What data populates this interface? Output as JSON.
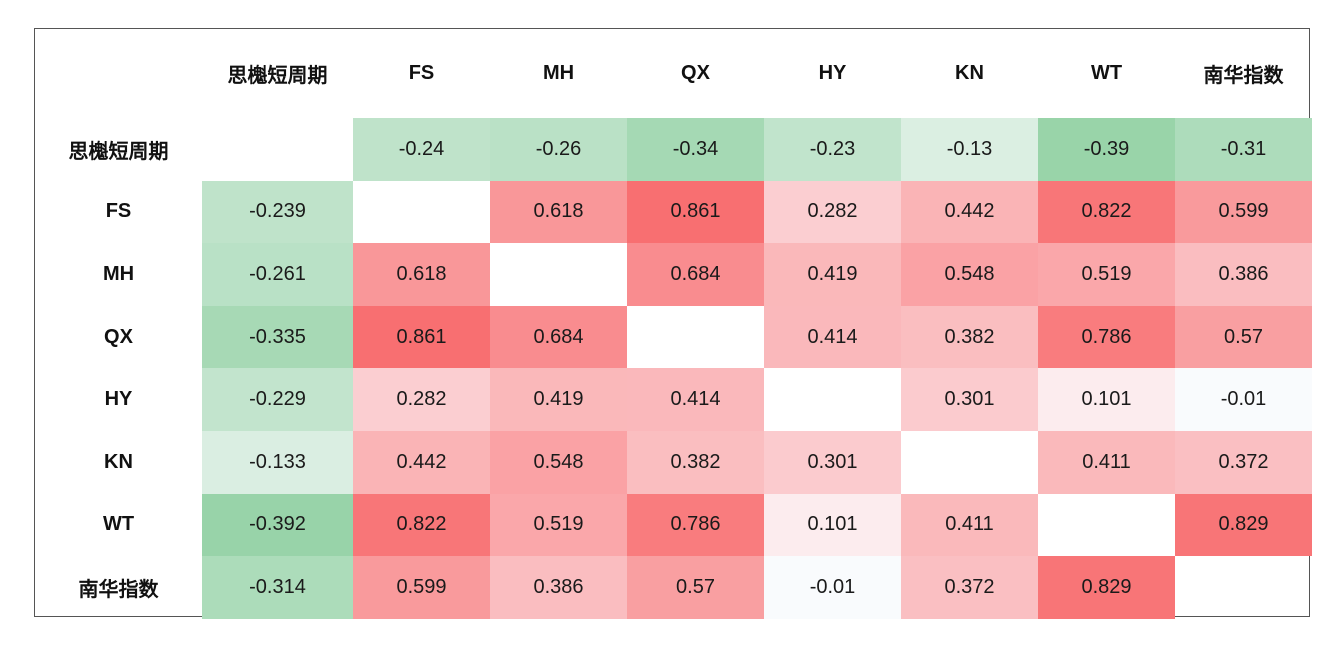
{
  "chart_data": {
    "type": "heatmap",
    "column_labels": [
      "思櫆短周期",
      "FS",
      "MH",
      "QX",
      "HY",
      "KN",
      "WT",
      "南华指数"
    ],
    "row_labels": [
      "思櫆短周期",
      "FS",
      "MH",
      "QX",
      "HY",
      "KN",
      "WT",
      "南华指数"
    ],
    "cells": [
      [
        "",
        "-0.24",
        "-0.26",
        "-0.34",
        "-0.23",
        "-0.13",
        "-0.39",
        "-0.31"
      ],
      [
        "-0.239",
        "",
        "0.618",
        "0.861",
        "0.282",
        "0.442",
        "0.822",
        "0.599"
      ],
      [
        "-0.261",
        "0.618",
        "",
        "0.684",
        "0.419",
        "0.548",
        "0.519",
        "0.386"
      ],
      [
        "-0.335",
        "0.861",
        "0.684",
        "",
        "0.414",
        "0.382",
        "0.786",
        "0.57"
      ],
      [
        "-0.229",
        "0.282",
        "0.419",
        "0.414",
        "",
        "0.301",
        "0.101",
        "-0.01"
      ],
      [
        "-0.133",
        "0.442",
        "0.548",
        "0.382",
        "0.301",
        "",
        "0.411",
        "0.372"
      ],
      [
        "-0.392",
        "0.822",
        "0.519",
        "0.786",
        "0.101",
        "0.411",
        "",
        "0.829"
      ],
      [
        "-0.314",
        "0.599",
        "0.386",
        "0.57",
        "-0.01",
        "0.372",
        "0.829",
        ""
      ]
    ],
    "colors": {
      "positive": "#f8696b",
      "negative": "#63be7b",
      "neutral": "#fcfcff"
    }
  }
}
